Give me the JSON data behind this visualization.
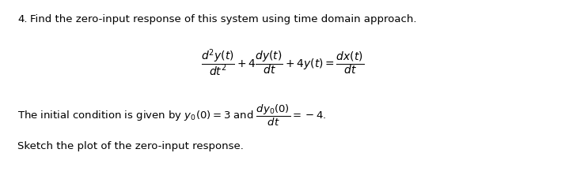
{
  "title_number": "4.",
  "title_text": "Find the zero-input response of this system using time domain approach.",
  "equation": "$\\dfrac{d^2y(t)}{dt^2} + 4\\dfrac{dy(t)}{dt} + 4y(t) = \\dfrac{dx(t)}{dt}$",
  "ic_text": "The initial condition is given by $y_0(0) = 3$ and $\\dfrac{dy_0(0)}{dt} = -4.$",
  "last_line": "Sketch the plot of the zero-input response.",
  "bg_color": "#ffffff",
  "text_color": "#000000",
  "font_size_title": 9.5,
  "font_size_eq": 10,
  "font_size_body": 9.5
}
